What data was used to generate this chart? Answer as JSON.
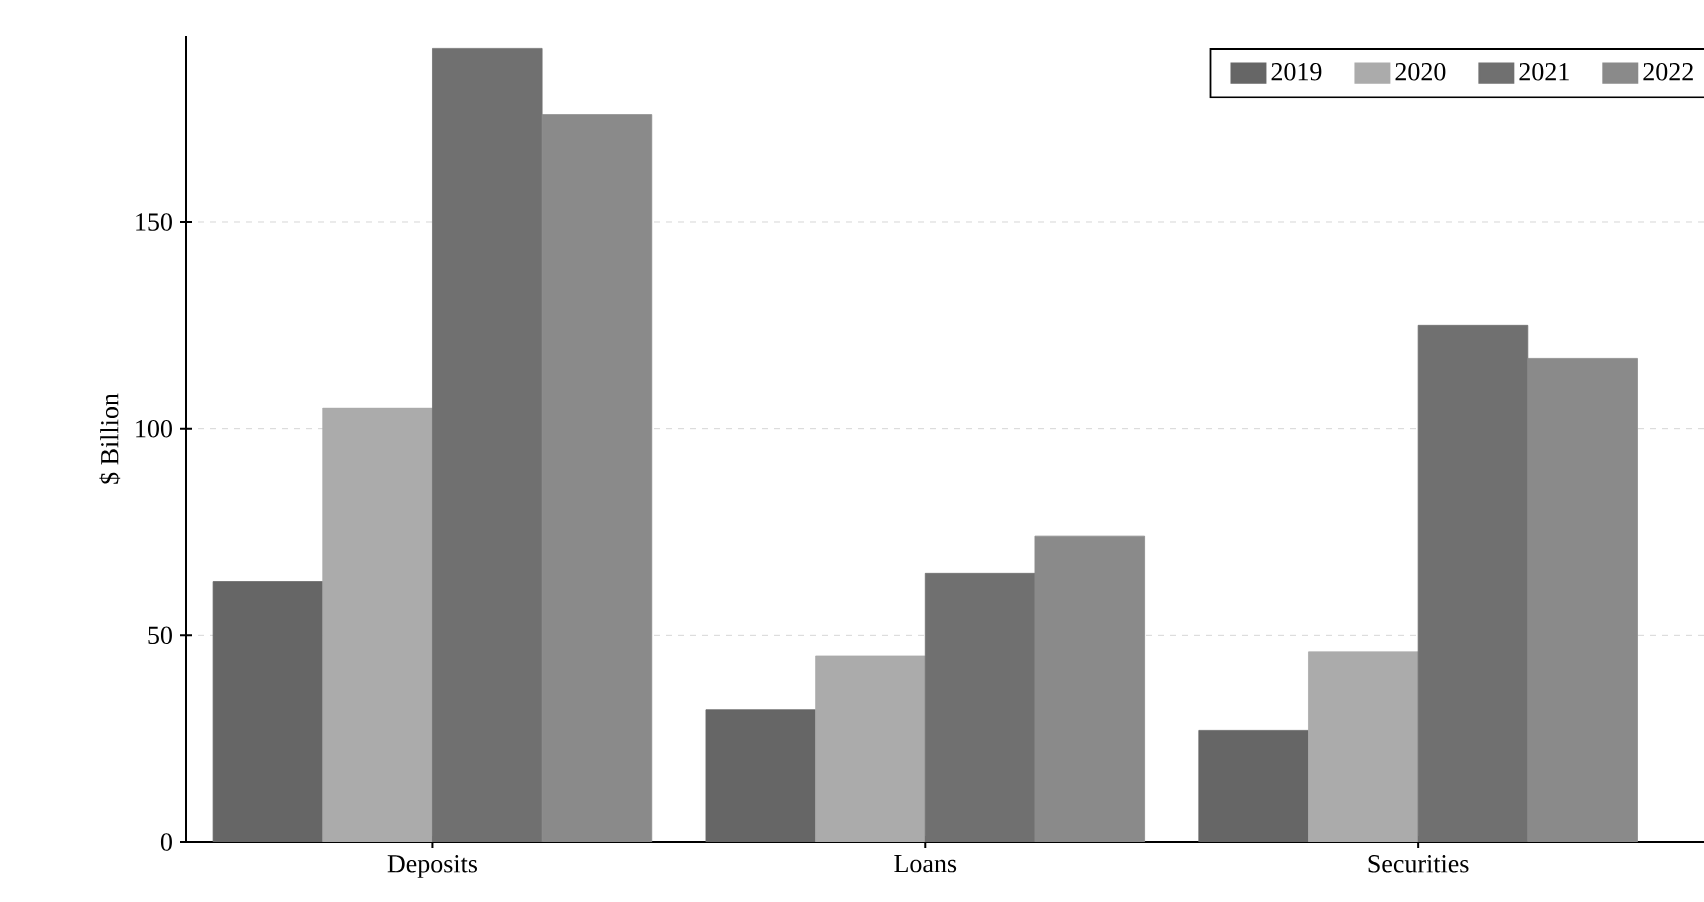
{
  "chart_data": {
    "type": "bar",
    "ylabel": "$ Billion",
    "categories": [
      "Deposits",
      "Loans",
      "Securities"
    ],
    "series": [
      {
        "name": "2019",
        "color": "#666666",
        "values": [
          63,
          32,
          27
        ]
      },
      {
        "name": "2020",
        "color": "#ababab",
        "values": [
          105,
          45,
          46
        ]
      },
      {
        "name": "2021",
        "color": "#707070",
        "values": [
          192,
          65,
          125
        ]
      },
      {
        "name": "2022",
        "color": "#8a8a8a",
        "values": [
          176,
          74,
          117
        ]
      }
    ],
    "ylim": [
      0,
      195
    ],
    "yticks": [
      0,
      50,
      100,
      150
    ],
    "grid": "y",
    "legend": "top right"
  }
}
